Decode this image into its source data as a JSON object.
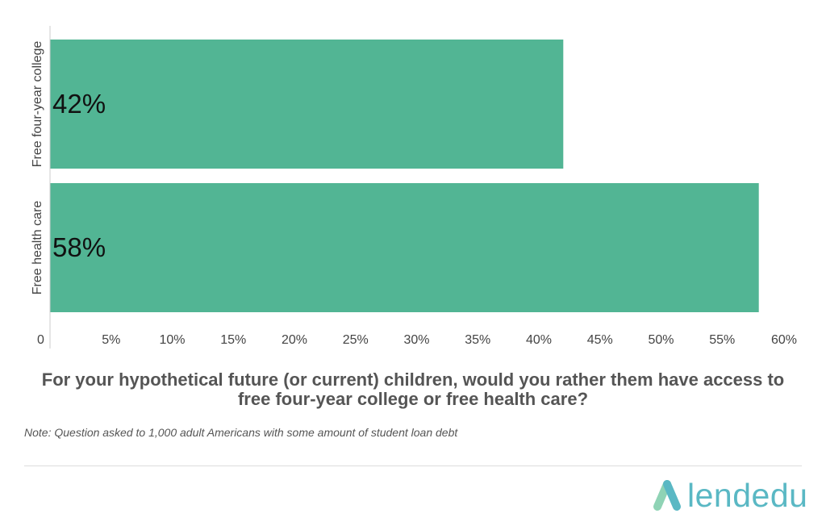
{
  "chart_data": {
    "type": "bar",
    "orientation": "horizontal",
    "categories": [
      "Free four-year college",
      "Free health care"
    ],
    "values": [
      42,
      58
    ],
    "value_labels": [
      "42%",
      "58%"
    ],
    "xlim": [
      0,
      60
    ],
    "x_ticks": [
      0,
      5,
      10,
      15,
      20,
      25,
      30,
      35,
      40,
      45,
      50,
      55,
      60
    ],
    "x_tick_labels": [
      "0",
      "5%",
      "10%",
      "15%",
      "20%",
      "25%",
      "30%",
      "35%",
      "40%",
      "45%",
      "50%",
      "55%",
      "60%"
    ],
    "bar_color": "#52b594",
    "grid": false,
    "legend": "none"
  },
  "question": "For your hypothetical future (or current) children, would you rather them have access to free four-year college or free health care?",
  "note": "Note: Question asked to 1,000 adult Americans with some amount of student loan debt",
  "logo": {
    "text": "lendedu",
    "icon": "lendedu-logo-mark",
    "colors": [
      "#5ab8c4",
      "#8fd3b5"
    ]
  }
}
